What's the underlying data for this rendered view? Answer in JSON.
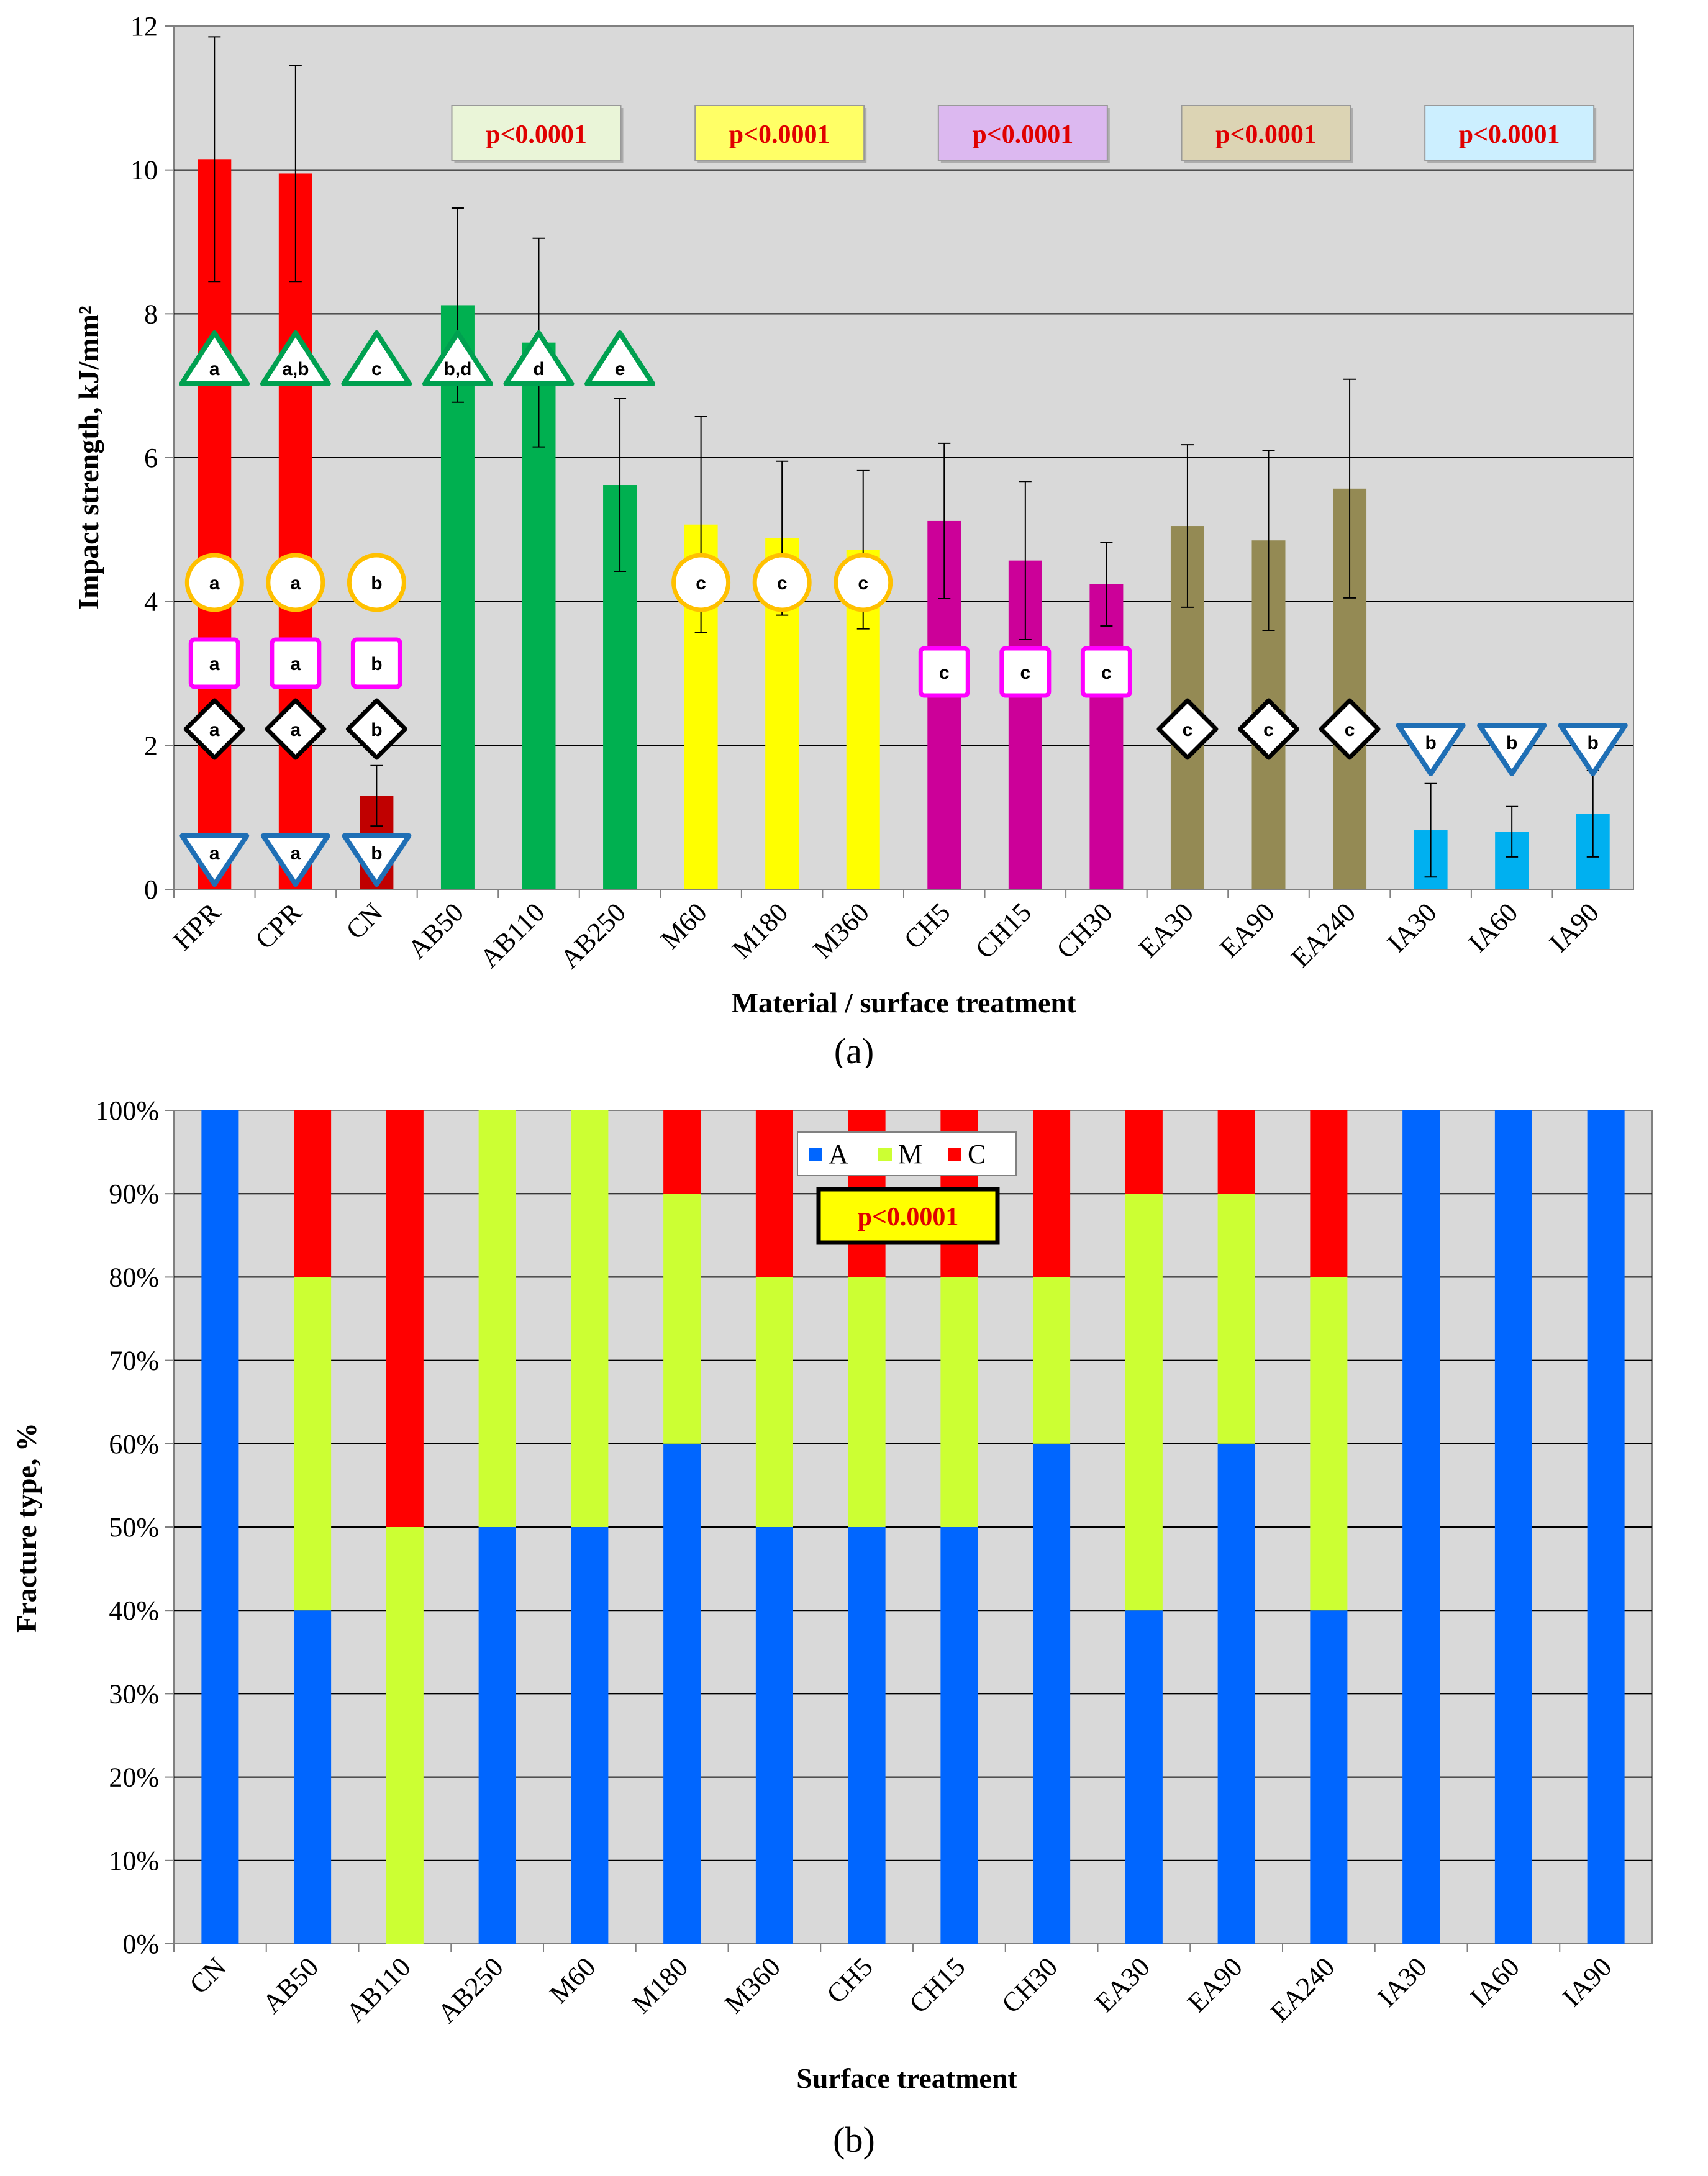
{
  "chart_data": [
    {
      "type": "bar",
      "panel_label": "(a)",
      "xlabel": "Material / surface treatment",
      "ylabel": "Impact strength, kJ/mm²",
      "ylim": [
        0,
        12
      ],
      "ytick_labels": [
        "0",
        "2",
        "4",
        "6",
        "8",
        "10",
        "12"
      ],
      "grid": true,
      "categories": [
        "HPR",
        "CPR",
        "CN",
        "AB50",
        "AB110",
        "AB250",
        "M60",
        "M180",
        "M360",
        "CH5",
        "CH15",
        "CH30",
        "EA30",
        "EA90",
        "EA240",
        "IA30",
        "IA60",
        "IA90"
      ],
      "values": [
        10.15,
        9.95,
        1.3,
        8.12,
        7.6,
        5.62,
        5.07,
        4.88,
        4.72,
        5.12,
        4.57,
        4.24,
        5.05,
        4.85,
        5.57,
        0.82,
        0.8,
        1.05
      ],
      "errors": [
        1.7,
        1.5,
        0.42,
        1.35,
        1.45,
        1.2,
        1.5,
        1.07,
        1.1,
        1.08,
        1.1,
        0.58,
        1.13,
        1.25,
        1.52,
        0.65,
        0.35,
        0.6
      ],
      "colors": [
        "#ff0000",
        "#ff0000",
        "#c00000",
        "#00b050",
        "#00b050",
        "#00b050",
        "#ffff00",
        "#ffff00",
        "#ffff00",
        "#cc0099",
        "#cc0099",
        "#cc0099",
        "#948a54",
        "#948a54",
        "#948a54",
        "#00b0f0",
        "#00b0f0",
        "#00b0f0"
      ],
      "annotations": {
        "pvalue_label": "p<0.0001",
        "pvalue_boxes": [
          {
            "group": "AB",
            "fill": "#eaf5d8"
          },
          {
            "group": "M",
            "fill": "#ffff66"
          },
          {
            "group": "CH",
            "fill": "#dcb8f0"
          },
          {
            "group": "EA",
            "fill": "#dcd4b4"
          },
          {
            "group": "IA",
            "fill": "#ccefff"
          }
        ],
        "triangles_up": [
          {
            "category": "HPR",
            "text": "a"
          },
          {
            "category": "CPR",
            "text": "a,b"
          },
          {
            "category": "CN",
            "text": "c"
          },
          {
            "category": "AB50",
            "text": "b,d"
          },
          {
            "category": "AB110",
            "text": "d"
          },
          {
            "category": "AB250",
            "text": "e"
          }
        ],
        "circles": [
          {
            "category": "HPR",
            "text": "a"
          },
          {
            "category": "CPR",
            "text": "a"
          },
          {
            "category": "CN",
            "text": "b"
          },
          {
            "category": "M60",
            "text": "c"
          },
          {
            "category": "M180",
            "text": "c"
          },
          {
            "category": "M360",
            "text": "c"
          }
        ],
        "squares": [
          {
            "category": "HPR",
            "text": "a"
          },
          {
            "category": "CPR",
            "text": "a"
          },
          {
            "category": "CN",
            "text": "b"
          },
          {
            "category": "CH5",
            "text": "c"
          },
          {
            "category": "CH15",
            "text": "c"
          },
          {
            "category": "CH30",
            "text": "c"
          }
        ],
        "diamonds": [
          {
            "category": "HPR",
            "text": "a"
          },
          {
            "category": "CPR",
            "text": "a"
          },
          {
            "category": "CN",
            "text": "b"
          },
          {
            "category": "EA30",
            "text": "c"
          },
          {
            "category": "EA90",
            "text": "c"
          },
          {
            "category": "EA240",
            "text": "c"
          }
        ],
        "triangles_down_top": [
          {
            "category": "IA30",
            "text": "b"
          },
          {
            "category": "IA60",
            "text": "b"
          },
          {
            "category": "IA90",
            "text": "b"
          }
        ],
        "triangles_down_bottom": [
          {
            "category": "HPR",
            "text": "a"
          },
          {
            "category": "CPR",
            "text": "a"
          },
          {
            "category": "CN",
            "text": "b"
          }
        ]
      }
    },
    {
      "type": "bar",
      "stacked": true,
      "panel_label": "(b)",
      "xlabel": "Surface treatment",
      "ylabel": "Fracture type, %",
      "ylim": [
        0,
        100
      ],
      "ytick_labels": [
        "0%",
        "10%",
        "20%",
        "30%",
        "40%",
        "50%",
        "60%",
        "70%",
        "80%",
        "90%",
        "100%"
      ],
      "grid": true,
      "categories": [
        "CN",
        "AB50",
        "AB110",
        "AB250",
        "M60",
        "M180",
        "M360",
        "CH5",
        "CH15",
        "CH30",
        "EA30",
        "EA90",
        "EA240",
        "IA30",
        "IA60",
        "IA90"
      ],
      "series": [
        {
          "name": "A",
          "color": "#0066ff",
          "values": [
            100,
            40,
            0,
            50,
            50,
            60,
            50,
            50,
            50,
            60,
            40,
            60,
            40,
            100,
            100,
            100
          ]
        },
        {
          "name": "M",
          "color": "#ccff33",
          "values": [
            0,
            40,
            50,
            50,
            50,
            30,
            30,
            30,
            30,
            20,
            50,
            30,
            40,
            0,
            0,
            0
          ]
        },
        {
          "name": "C",
          "color": "#ff0000",
          "values": [
            0,
            20,
            50,
            0,
            0,
            10,
            20,
            20,
            20,
            20,
            10,
            10,
            20,
            0,
            0,
            0
          ]
        }
      ],
      "legend": "top-center",
      "annotation": "p<0.0001"
    }
  ]
}
